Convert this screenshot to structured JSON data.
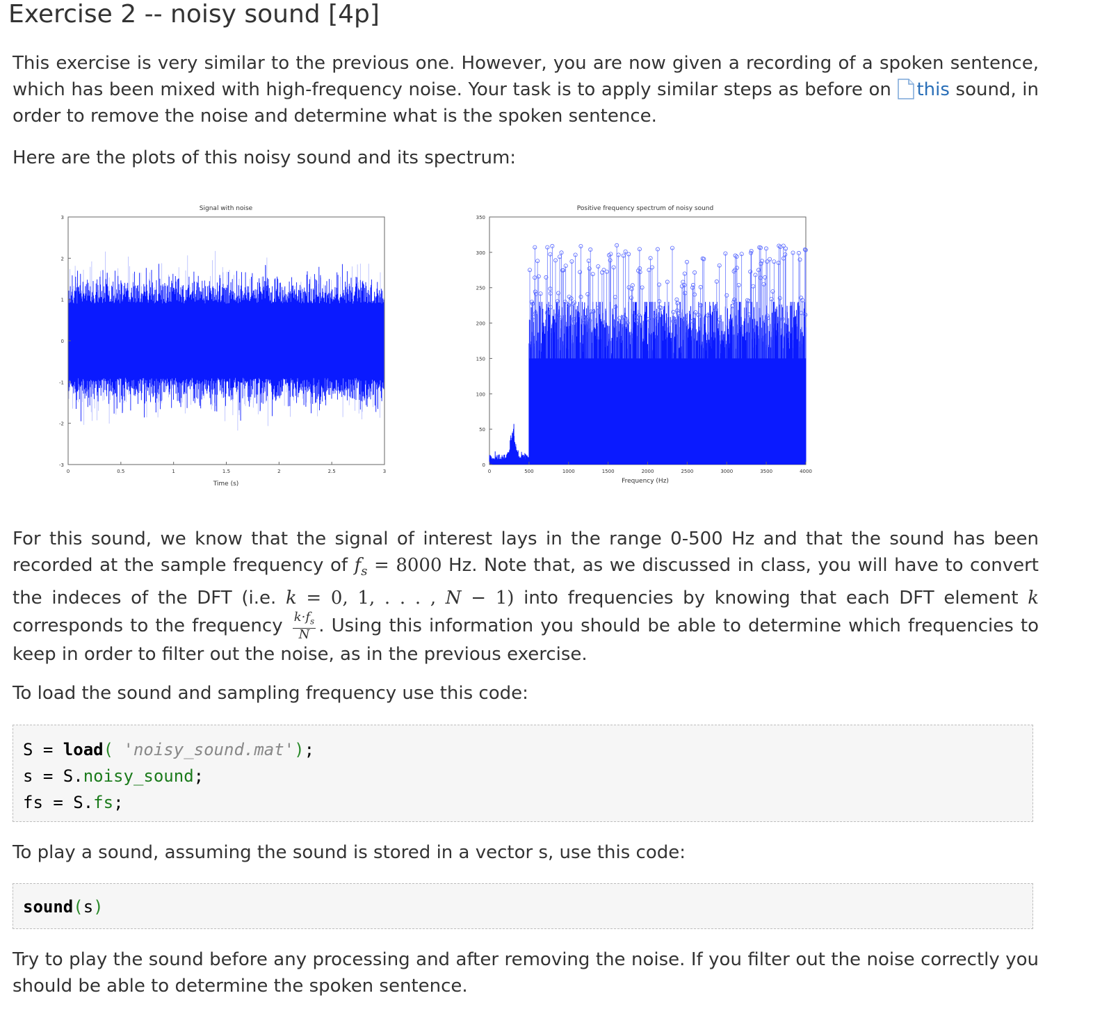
{
  "title": "Exercise 2 -- noisy sound [4p]",
  "intro": {
    "text_a": "This exercise is very similar to the previous one. However, you are now given a recording of a spoken sentence, which has been mixed with high-frequency noise. Your task is to apply similar steps as before on ",
    "link_text": "this",
    "text_b": " sound, in order to remove the noise and determine what is the spoken sentence."
  },
  "plots_intro": "Here are the plots of this noisy sound and its spectrum:",
  "figures": {
    "signal": {
      "title": "Signal with noise",
      "xlabel": "Time (s)",
      "xticks": [
        "0",
        "0.5",
        "1",
        "1.5",
        "2",
        "2.5",
        "3"
      ],
      "yticks": [
        "-3",
        "-2",
        "-1",
        "0",
        "1",
        "2",
        "3"
      ],
      "color": "#0a1aff"
    },
    "spectrum": {
      "title": "Positive frequency spectrum of noisy sound",
      "xlabel": "Frequency (Hz)",
      "xticks": [
        "0",
        "500",
        "1000",
        "1500",
        "2000",
        "2500",
        "3000",
        "3500",
        "4000"
      ],
      "yticks": [
        "0",
        "50",
        "100",
        "150",
        "200",
        "250",
        "300",
        "350"
      ],
      "color": "#0a1aff"
    }
  },
  "range_para": {
    "t1": "For this sound, we know that the signal of interest lays in the range 0-500 Hz and that the sound has been recorded at the sample frequency of ",
    "fs_sym": "f",
    "fs_sub": "s",
    "fs_val": " = 8000",
    "t2": " Hz. Note that, as we discussed in class, you will have to convert the indeces of the DFT (i.e. ",
    "k_sym": "k",
    "k_range": " = 0, 1, . . . , ",
    "n_sym": "N",
    "n_minus": " − 1)",
    "t3": " into frequencies by knowing that each DFT element ",
    "k2": "k",
    "t4": " corresponds to the frequency ",
    "frac_num": "k·f",
    "frac_num_sub": "s",
    "frac_den": "N",
    "t5": ". Using this information you should be able to determine which frequencies to keep in order to filter out the noise, as in the previous exercise."
  },
  "load_intro": "To load the sound and sampling frequency use this code:",
  "load_code": {
    "l1_a": "S = ",
    "l1_fn": "load",
    "l1_p1": "(",
    "l1_str": " 'noisy_sound.mat'",
    "l1_p2": ")",
    "l1_end": ";",
    "l2_a": "s = S.",
    "l2_f": "noisy_sound",
    "l2_end": ";",
    "l3_a": "fs = S.",
    "l3_f": "fs",
    "l3_end": ";"
  },
  "play_intro": "To play a sound, assuming the sound is stored in a vector s, use this code:",
  "play_code": {
    "fn": "sound",
    "p1": "(",
    "arg": "s",
    "p2": ")"
  },
  "final_para": "Try to play the sound before any processing and after removing the noise. If you filter out the noise correctly you should be able to determine the spoken sentence."
}
